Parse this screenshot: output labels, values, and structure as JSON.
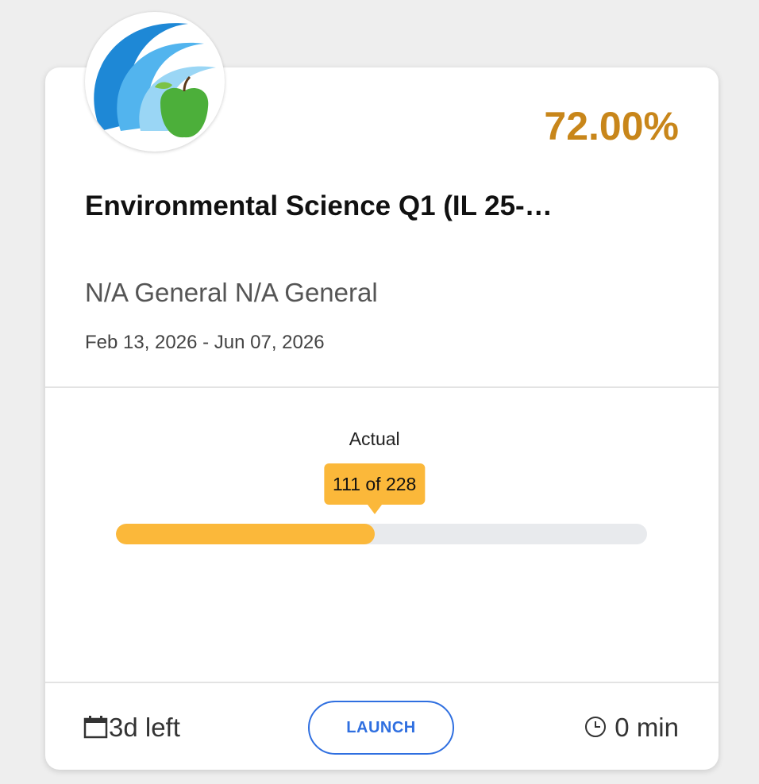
{
  "card": {
    "grade": "72.00%",
    "title": "Environmental Science Q1 (IL 25-…",
    "subtitle": "N/A General N/A General",
    "dates": "Feb 13, 2026 - Jun 07, 2026",
    "progress": {
      "label": "Actual",
      "completed": 111,
      "total": 228,
      "tooltip": "111 of 228",
      "color": "#fbb83a"
    },
    "footer": {
      "time_left": "3d left",
      "button": "LAUNCH",
      "time_spent": "0 min"
    }
  }
}
